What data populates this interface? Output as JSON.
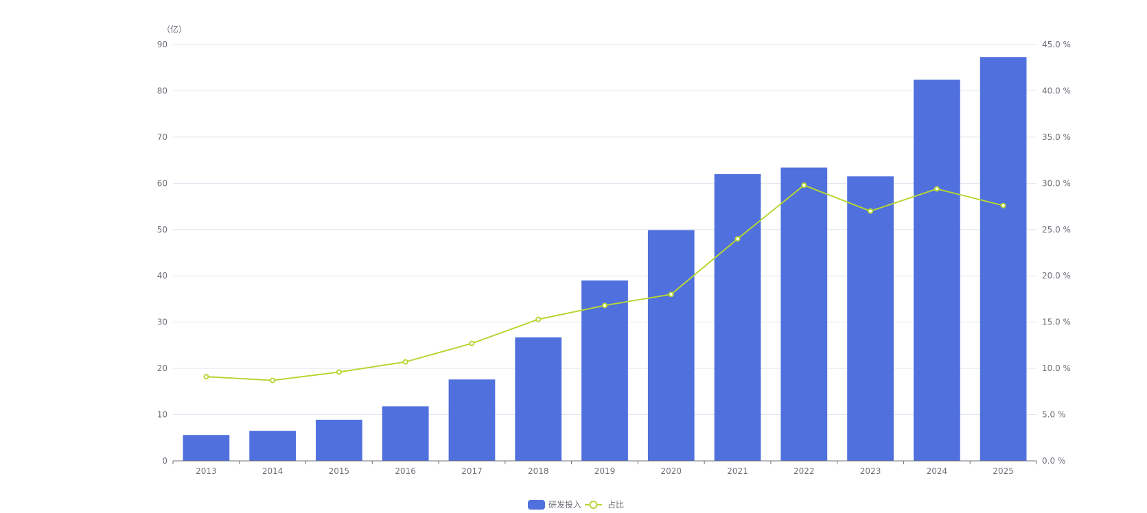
{
  "chart_data": {
    "type": "bar+line",
    "categories": [
      "2013",
      "2014",
      "2015",
      "2016",
      "2017",
      "2018",
      "2019",
      "2020",
      "2021",
      "2022",
      "2023",
      "2024",
      "2025"
    ],
    "series": [
      {
        "name": "研发投入",
        "type": "bar",
        "axis": "left",
        "color": "#5070dd",
        "values": [
          5.6,
          6.5,
          8.9,
          11.8,
          17.6,
          26.7,
          39.0,
          49.9,
          62.0,
          63.4,
          61.5,
          82.4,
          87.3
        ]
      },
      {
        "name": "占比",
        "type": "line",
        "axis": "right",
        "color": "#b6d634",
        "values": [
          9.1,
          8.7,
          9.6,
          10.7,
          12.7,
          15.3,
          16.8,
          18.0,
          24.0,
          29.8,
          27.0,
          29.4,
          27.6
        ]
      }
    ],
    "y_left": {
      "label": "（亿）",
      "min": 0,
      "max": 90,
      "ticks": [
        "0",
        "10",
        "20",
        "30",
        "40",
        "50",
        "60",
        "70",
        "80",
        "90"
      ]
    },
    "y_right": {
      "min": 0,
      "max": 45,
      "ticks": [
        "0.0 %",
        "5.0 %",
        "10.0 %",
        "15.0 %",
        "20.0 %",
        "25.0 %",
        "30.0 %",
        "35.0 %",
        "40.0 %",
        "45.0 %"
      ]
    },
    "grid": true,
    "legend": {
      "placement": "bottom-center",
      "items": [
        "研发投入",
        "占比"
      ]
    }
  }
}
